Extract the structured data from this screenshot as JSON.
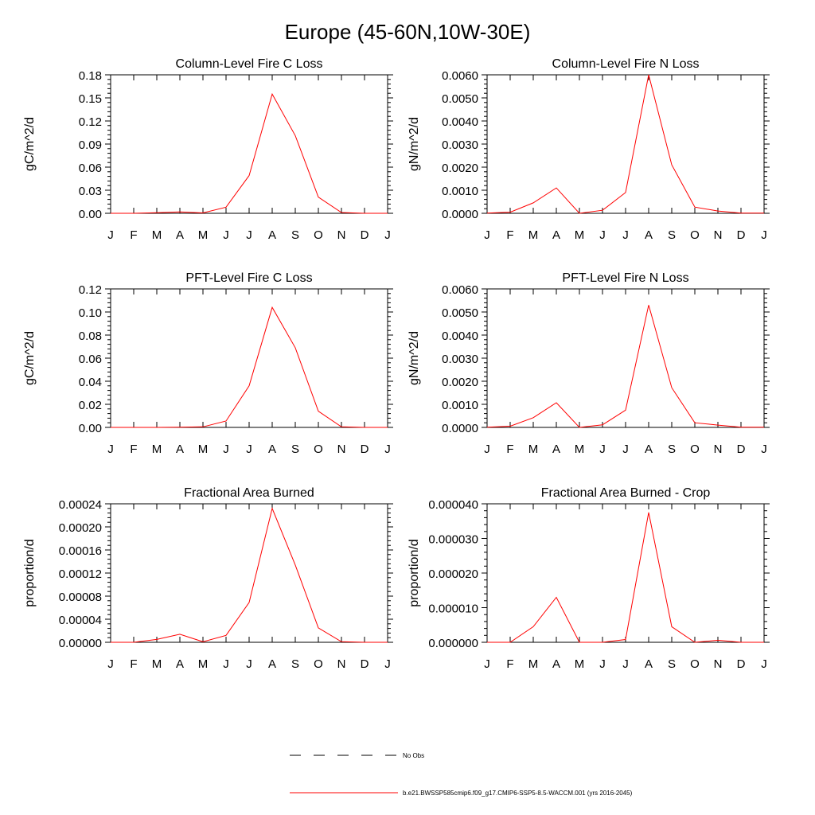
{
  "figure_title": "Europe (45-60N,10W-30E)",
  "months": [
    "J",
    "F",
    "M",
    "A",
    "M",
    "J",
    "J",
    "A",
    "S",
    "O",
    "N",
    "D",
    "J"
  ],
  "legend": {
    "no_obs_label": "No Obs",
    "model_label": "b.e21.BWSSP585cmip6.f09_g17.CMIP6-SSP5-8.5-WACCM.001 (yrs 2016-2045)"
  },
  "colors": {
    "model_line": "#ff0000",
    "axis": "#000000",
    "background": "#ffffff"
  },
  "chart_data": [
    {
      "type": "line",
      "title": "Column-Level Fire C Loss",
      "ylabel": "gC/m^2/d",
      "ylim": [
        0,
        0.18
      ],
      "yticks": [
        0,
        0.03,
        0.06,
        0.09,
        0.12,
        0.15,
        0.18
      ],
      "ytick_labels": [
        "0.00",
        "0.03",
        "0.06",
        "0.09",
        "0.12",
        "0.15",
        "0.18"
      ],
      "x": [
        1,
        2,
        3,
        4,
        5,
        6,
        7,
        8,
        9,
        10,
        11,
        12,
        13
      ],
      "series": [
        {
          "name": "model",
          "values": [
            0.0,
            0.0,
            0.0008,
            0.0018,
            0.0005,
            0.008,
            0.049,
            0.155,
            0.101,
            0.021,
            0.001,
            0.0,
            0.0
          ]
        }
      ]
    },
    {
      "type": "line",
      "title": "Column-Level Fire N Loss",
      "ylabel": "gN/m^2/d",
      "ylim": [
        0,
        0.006
      ],
      "yticks": [
        0,
        0.001,
        0.002,
        0.003,
        0.004,
        0.005,
        0.006
      ],
      "ytick_labels": [
        "0.0000",
        "0.0010",
        "0.0020",
        "0.0030",
        "0.0040",
        "0.0050",
        "0.0060"
      ],
      "x": [
        1,
        2,
        3,
        4,
        5,
        6,
        7,
        8,
        9,
        10,
        11,
        12,
        13
      ],
      "series": [
        {
          "name": "model",
          "values": [
            1e-05,
            5e-05,
            0.00045,
            0.0011,
            0.0,
            0.00013,
            0.0009,
            0.006,
            0.0021,
            0.00027,
            0.0001,
            1e-05,
            1e-05
          ]
        }
      ]
    },
    {
      "type": "line",
      "title": "PFT-Level Fire C Loss",
      "ylabel": "gC/m^2/d",
      "ylim": [
        0,
        0.12
      ],
      "yticks": [
        0,
        0.02,
        0.04,
        0.06,
        0.08,
        0.1,
        0.12
      ],
      "ytick_labels": [
        "0.00",
        "0.02",
        "0.04",
        "0.06",
        "0.08",
        "0.10",
        "0.12"
      ],
      "x": [
        1,
        2,
        3,
        4,
        5,
        6,
        7,
        8,
        9,
        10,
        11,
        12,
        13
      ],
      "series": [
        {
          "name": "model",
          "values": [
            0.0,
            0.0,
            0.0,
            0.0002,
            0.0005,
            0.0055,
            0.036,
            0.104,
            0.069,
            0.014,
            0.0005,
            0.0,
            0.0
          ]
        }
      ]
    },
    {
      "type": "line",
      "title": "PFT-Level Fire N Loss",
      "ylabel": "gN/m^2/d",
      "ylim": [
        0,
        0.006
      ],
      "yticks": [
        0,
        0.001,
        0.002,
        0.003,
        0.004,
        0.005,
        0.006
      ],
      "ytick_labels": [
        "0.0000",
        "0.0010",
        "0.0020",
        "0.0030",
        "0.0040",
        "0.0050",
        "0.0060"
      ],
      "x": [
        1,
        2,
        3,
        4,
        5,
        6,
        7,
        8,
        9,
        10,
        11,
        12,
        13
      ],
      "series": [
        {
          "name": "model",
          "values": [
            1e-05,
            5e-05,
            0.00042,
            0.00107,
            0.0,
            0.00011,
            0.00075,
            0.0053,
            0.00172,
            0.0002,
            0.0001,
            1e-05,
            1e-05
          ]
        }
      ]
    },
    {
      "type": "line",
      "title": "Fractional Area Burned",
      "ylabel": "proportion/d",
      "ylim": [
        0,
        0.00024
      ],
      "yticks": [
        0,
        4e-05,
        8e-05,
        0.00012,
        0.00016,
        0.0002,
        0.00024
      ],
      "ytick_labels": [
        "0.00000",
        "0.00004",
        "0.00008",
        "0.00012",
        "0.00016",
        "0.00020",
        "0.00024"
      ],
      "x": [
        1,
        2,
        3,
        4,
        5,
        6,
        7,
        8,
        9,
        10,
        11,
        12,
        13
      ],
      "series": [
        {
          "name": "model",
          "values": [
            0.0,
            0.0,
            5e-06,
            1.4e-05,
            1e-06,
            1.2e-05,
            6.9e-05,
            0.000232,
            0.000134,
            2.5e-05,
            1e-06,
            0.0,
            0.0
          ]
        }
      ]
    },
    {
      "type": "line",
      "title": "Fractional Area Burned - Crop",
      "ylabel": "proportion/d",
      "ylim": [
        0,
        4e-05
      ],
      "yticks": [
        0,
        1e-05,
        2e-05,
        3e-05,
        4e-05
      ],
      "ytick_labels": [
        "0.000000",
        "0.000010",
        "0.000020",
        "0.000030",
        "0.000040"
      ],
      "x": [
        1,
        2,
        3,
        4,
        5,
        6,
        7,
        8,
        9,
        10,
        11,
        12,
        13
      ],
      "series": [
        {
          "name": "model",
          "values": [
            0.0,
            0.0,
            4.5e-06,
            1.3e-05,
            0.0,
            0.0,
            8e-07,
            3.75e-05,
            4.5e-06,
            0.0,
            6e-07,
            0.0,
            0.0
          ]
        }
      ]
    }
  ]
}
